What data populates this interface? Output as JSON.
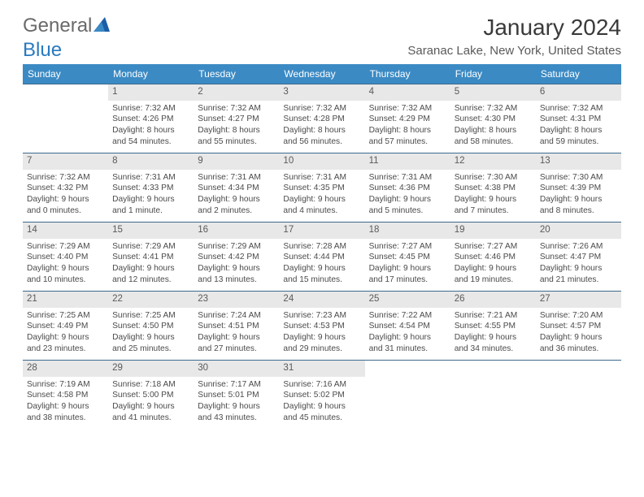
{
  "logo": {
    "word1": "General",
    "word2": "Blue"
  },
  "title": "January 2024",
  "location": "Saranac Lake, New York, United States",
  "colors": {
    "header_bg": "#3b8ac4",
    "header_text": "#ffffff",
    "daynum_bg": "#e8e8e8",
    "daynum_text": "#5a5a5a",
    "week_border": "#3b6a8f",
    "body_text": "#4a4a4a",
    "logo_gray": "#6a6a6a",
    "logo_blue": "#2a7abf"
  },
  "day_headers": [
    "Sunday",
    "Monday",
    "Tuesday",
    "Wednesday",
    "Thursday",
    "Friday",
    "Saturday"
  ],
  "weeks": [
    [
      {
        "empty": true
      },
      {
        "num": "1",
        "sunrise": "Sunrise: 7:32 AM",
        "sunset": "Sunset: 4:26 PM",
        "daylight1": "Daylight: 8 hours",
        "daylight2": "and 54 minutes."
      },
      {
        "num": "2",
        "sunrise": "Sunrise: 7:32 AM",
        "sunset": "Sunset: 4:27 PM",
        "daylight1": "Daylight: 8 hours",
        "daylight2": "and 55 minutes."
      },
      {
        "num": "3",
        "sunrise": "Sunrise: 7:32 AM",
        "sunset": "Sunset: 4:28 PM",
        "daylight1": "Daylight: 8 hours",
        "daylight2": "and 56 minutes."
      },
      {
        "num": "4",
        "sunrise": "Sunrise: 7:32 AM",
        "sunset": "Sunset: 4:29 PM",
        "daylight1": "Daylight: 8 hours",
        "daylight2": "and 57 minutes."
      },
      {
        "num": "5",
        "sunrise": "Sunrise: 7:32 AM",
        "sunset": "Sunset: 4:30 PM",
        "daylight1": "Daylight: 8 hours",
        "daylight2": "and 58 minutes."
      },
      {
        "num": "6",
        "sunrise": "Sunrise: 7:32 AM",
        "sunset": "Sunset: 4:31 PM",
        "daylight1": "Daylight: 8 hours",
        "daylight2": "and 59 minutes."
      }
    ],
    [
      {
        "num": "7",
        "sunrise": "Sunrise: 7:32 AM",
        "sunset": "Sunset: 4:32 PM",
        "daylight1": "Daylight: 9 hours",
        "daylight2": "and 0 minutes."
      },
      {
        "num": "8",
        "sunrise": "Sunrise: 7:31 AM",
        "sunset": "Sunset: 4:33 PM",
        "daylight1": "Daylight: 9 hours",
        "daylight2": "and 1 minute."
      },
      {
        "num": "9",
        "sunrise": "Sunrise: 7:31 AM",
        "sunset": "Sunset: 4:34 PM",
        "daylight1": "Daylight: 9 hours",
        "daylight2": "and 2 minutes."
      },
      {
        "num": "10",
        "sunrise": "Sunrise: 7:31 AM",
        "sunset": "Sunset: 4:35 PM",
        "daylight1": "Daylight: 9 hours",
        "daylight2": "and 4 minutes."
      },
      {
        "num": "11",
        "sunrise": "Sunrise: 7:31 AM",
        "sunset": "Sunset: 4:36 PM",
        "daylight1": "Daylight: 9 hours",
        "daylight2": "and 5 minutes."
      },
      {
        "num": "12",
        "sunrise": "Sunrise: 7:30 AM",
        "sunset": "Sunset: 4:38 PM",
        "daylight1": "Daylight: 9 hours",
        "daylight2": "and 7 minutes."
      },
      {
        "num": "13",
        "sunrise": "Sunrise: 7:30 AM",
        "sunset": "Sunset: 4:39 PM",
        "daylight1": "Daylight: 9 hours",
        "daylight2": "and 8 minutes."
      }
    ],
    [
      {
        "num": "14",
        "sunrise": "Sunrise: 7:29 AM",
        "sunset": "Sunset: 4:40 PM",
        "daylight1": "Daylight: 9 hours",
        "daylight2": "and 10 minutes."
      },
      {
        "num": "15",
        "sunrise": "Sunrise: 7:29 AM",
        "sunset": "Sunset: 4:41 PM",
        "daylight1": "Daylight: 9 hours",
        "daylight2": "and 12 minutes."
      },
      {
        "num": "16",
        "sunrise": "Sunrise: 7:29 AM",
        "sunset": "Sunset: 4:42 PM",
        "daylight1": "Daylight: 9 hours",
        "daylight2": "and 13 minutes."
      },
      {
        "num": "17",
        "sunrise": "Sunrise: 7:28 AM",
        "sunset": "Sunset: 4:44 PM",
        "daylight1": "Daylight: 9 hours",
        "daylight2": "and 15 minutes."
      },
      {
        "num": "18",
        "sunrise": "Sunrise: 7:27 AM",
        "sunset": "Sunset: 4:45 PM",
        "daylight1": "Daylight: 9 hours",
        "daylight2": "and 17 minutes."
      },
      {
        "num": "19",
        "sunrise": "Sunrise: 7:27 AM",
        "sunset": "Sunset: 4:46 PM",
        "daylight1": "Daylight: 9 hours",
        "daylight2": "and 19 minutes."
      },
      {
        "num": "20",
        "sunrise": "Sunrise: 7:26 AM",
        "sunset": "Sunset: 4:47 PM",
        "daylight1": "Daylight: 9 hours",
        "daylight2": "and 21 minutes."
      }
    ],
    [
      {
        "num": "21",
        "sunrise": "Sunrise: 7:25 AM",
        "sunset": "Sunset: 4:49 PM",
        "daylight1": "Daylight: 9 hours",
        "daylight2": "and 23 minutes."
      },
      {
        "num": "22",
        "sunrise": "Sunrise: 7:25 AM",
        "sunset": "Sunset: 4:50 PM",
        "daylight1": "Daylight: 9 hours",
        "daylight2": "and 25 minutes."
      },
      {
        "num": "23",
        "sunrise": "Sunrise: 7:24 AM",
        "sunset": "Sunset: 4:51 PM",
        "daylight1": "Daylight: 9 hours",
        "daylight2": "and 27 minutes."
      },
      {
        "num": "24",
        "sunrise": "Sunrise: 7:23 AM",
        "sunset": "Sunset: 4:53 PM",
        "daylight1": "Daylight: 9 hours",
        "daylight2": "and 29 minutes."
      },
      {
        "num": "25",
        "sunrise": "Sunrise: 7:22 AM",
        "sunset": "Sunset: 4:54 PM",
        "daylight1": "Daylight: 9 hours",
        "daylight2": "and 31 minutes."
      },
      {
        "num": "26",
        "sunrise": "Sunrise: 7:21 AM",
        "sunset": "Sunset: 4:55 PM",
        "daylight1": "Daylight: 9 hours",
        "daylight2": "and 34 minutes."
      },
      {
        "num": "27",
        "sunrise": "Sunrise: 7:20 AM",
        "sunset": "Sunset: 4:57 PM",
        "daylight1": "Daylight: 9 hours",
        "daylight2": "and 36 minutes."
      }
    ],
    [
      {
        "num": "28",
        "sunrise": "Sunrise: 7:19 AM",
        "sunset": "Sunset: 4:58 PM",
        "daylight1": "Daylight: 9 hours",
        "daylight2": "and 38 minutes."
      },
      {
        "num": "29",
        "sunrise": "Sunrise: 7:18 AM",
        "sunset": "Sunset: 5:00 PM",
        "daylight1": "Daylight: 9 hours",
        "daylight2": "and 41 minutes."
      },
      {
        "num": "30",
        "sunrise": "Sunrise: 7:17 AM",
        "sunset": "Sunset: 5:01 PM",
        "daylight1": "Daylight: 9 hours",
        "daylight2": "and 43 minutes."
      },
      {
        "num": "31",
        "sunrise": "Sunrise: 7:16 AM",
        "sunset": "Sunset: 5:02 PM",
        "daylight1": "Daylight: 9 hours",
        "daylight2": "and 45 minutes."
      },
      {
        "empty": true
      },
      {
        "empty": true
      },
      {
        "empty": true
      }
    ]
  ]
}
